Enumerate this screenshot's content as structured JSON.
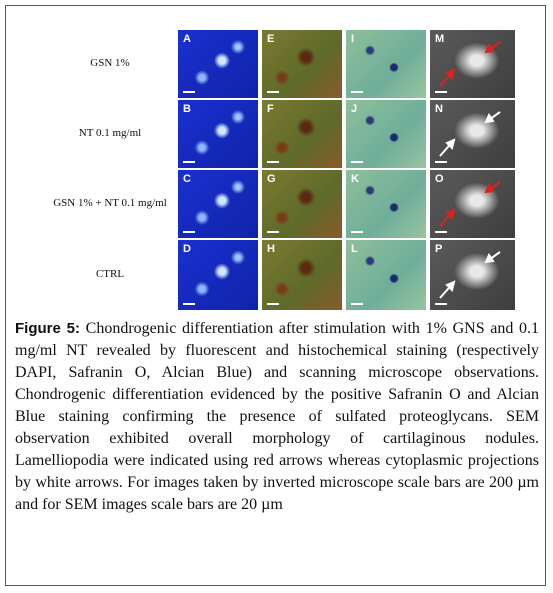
{
  "figure": {
    "row_labels": [
      "GSN 1%",
      "NT 0.1 mg/ml",
      "GSN 1% + NT 0.1 mg/ml",
      "CTRL"
    ],
    "panels": [
      [
        "A",
        "E",
        "I",
        "M"
      ],
      [
        "B",
        "F",
        "J",
        "N"
      ],
      [
        "C",
        "G",
        "K",
        "O"
      ],
      [
        "D",
        "H",
        "L",
        "P"
      ]
    ],
    "caption_label": "Figure 5:",
    "caption_text": "Chondrogenic differentiation after stimulation with 1% GNS and 0.1 mg/ml NT revealed by fluorescent and histochemical staining (respectively DAPI, Safranin O, Alcian Blue) and scanning microscope observations. Chondrogenic differentiation evidenced by the positive Safranin O and Alcian Blue staining confirming the presence of sulfated proteoglycans. SEM observation exhibited overall morphology of cartilaginous nodules. Lamelliopodia were indicated using red arrows whereas cytoplasmic projections by white arrows. For images taken by inverted microscope scale bars are 200 µm and for SEM images scale bars are 20 µm"
  }
}
